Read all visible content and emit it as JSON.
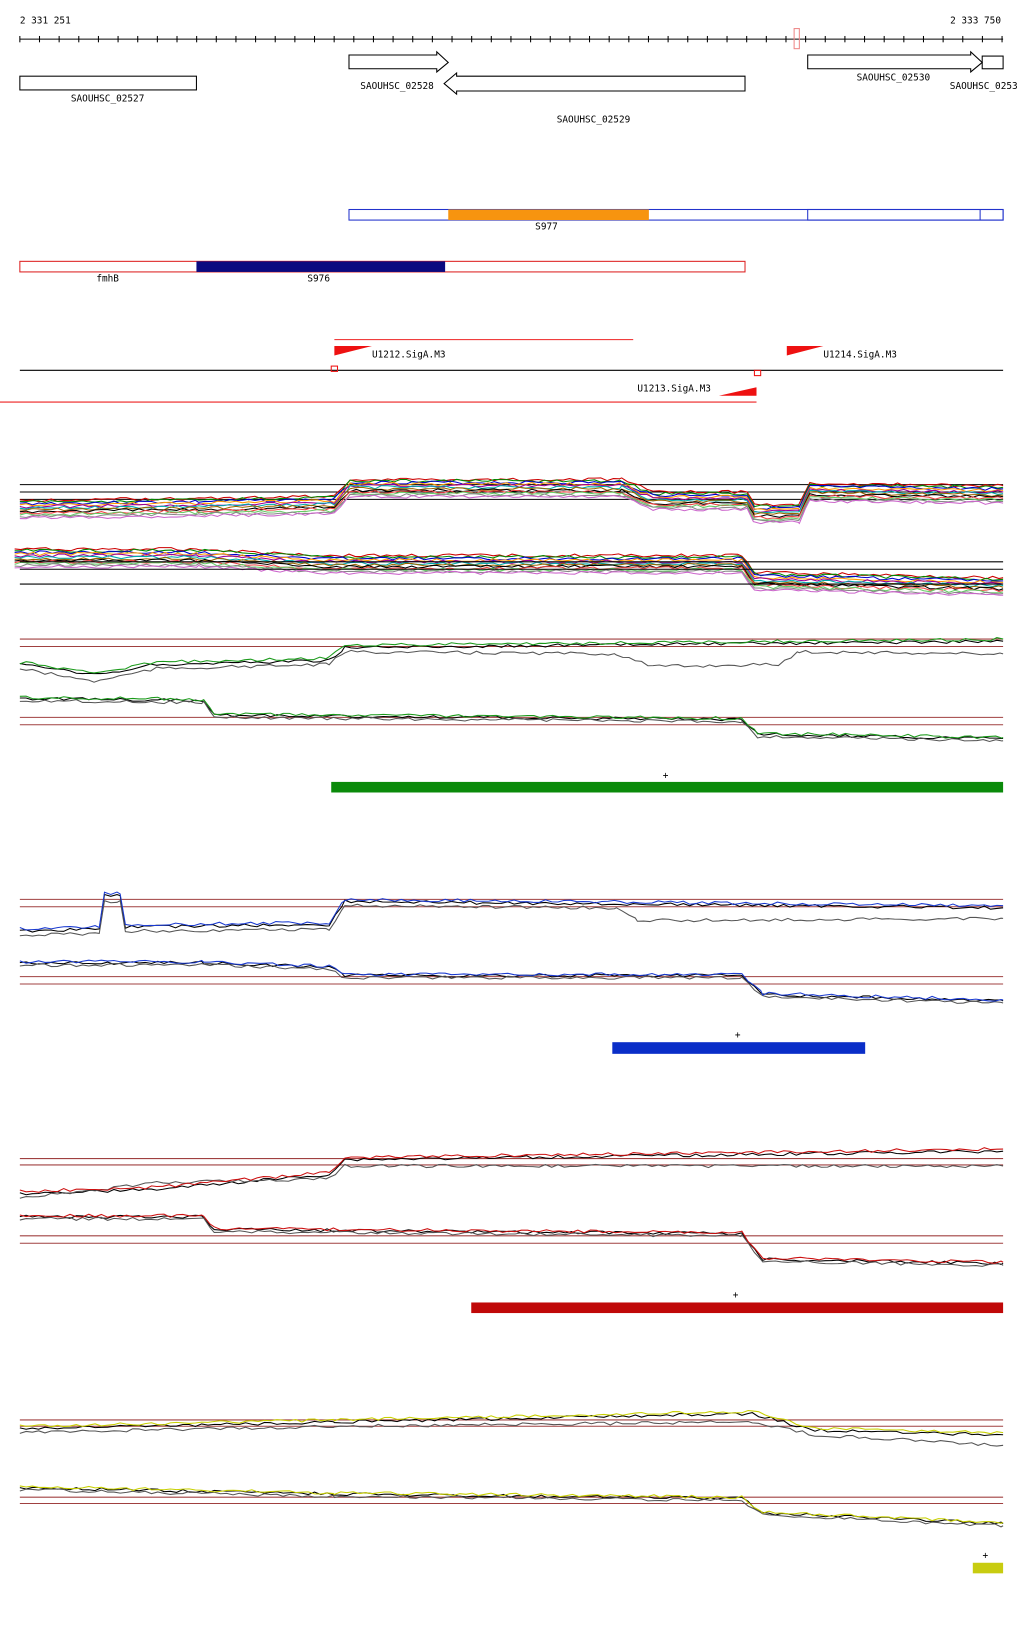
{
  "ruler": {
    "start": "2 331 251",
    "end": "2 333 750"
  },
  "genes": [
    {
      "label": "SAOUHSC_02527"
    },
    {
      "label": "SAOUHSC_02528"
    },
    {
      "label": "SAOUHSC_02529"
    },
    {
      "label": "SAOUHSC_02530"
    },
    {
      "label": "SAOUHSC_0253"
    }
  ],
  "segments": [
    {
      "label": "S977"
    },
    {
      "label": "fmhB"
    },
    {
      "label": "S976"
    }
  ],
  "promoters": [
    {
      "label": "U1212.SigA.M3"
    },
    {
      "label": "U1213.SigA.M3"
    },
    {
      "label": "U1214.SigA.M3"
    }
  ],
  "strand_marks": [
    "+",
    "+",
    "+",
    "+"
  ]
}
